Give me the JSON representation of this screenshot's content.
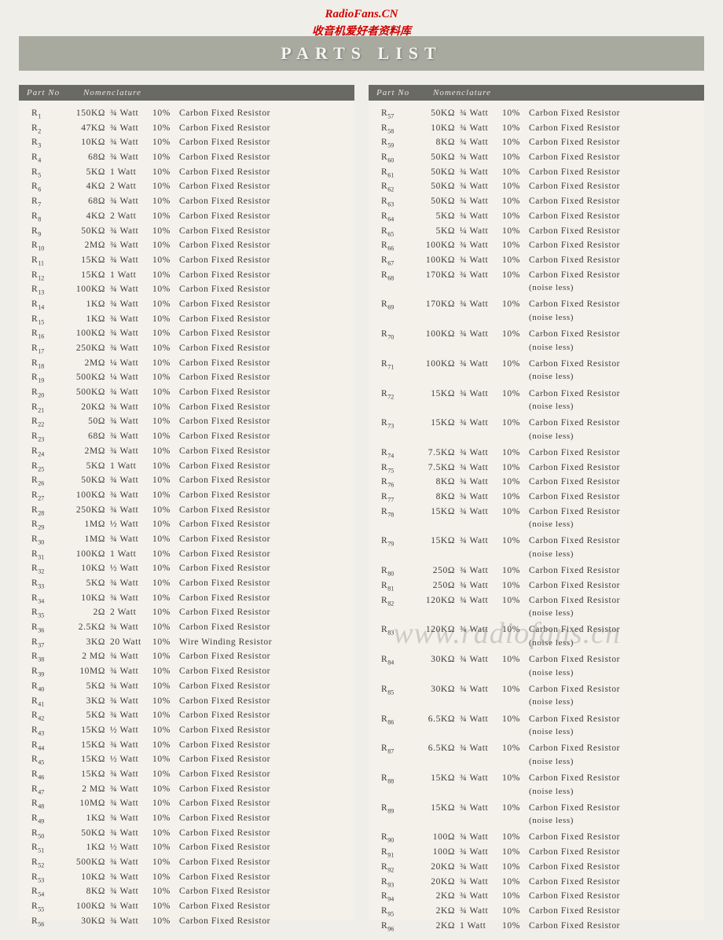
{
  "watermark": {
    "site": "RadioFans.CN",
    "cn": "收音机爱好者资料库",
    "diag": "www.radiofans.cn"
  },
  "title": "PARTS  LIST",
  "headers": {
    "part": "Part No",
    "nom": "Nomenclature"
  },
  "noise_text": "(noise less)",
  "left_rows": [
    {
      "n": "1",
      "v": "150KΩ",
      "w": "¾ Watt",
      "p": "10%",
      "d": "Carbon Fixed Resistor"
    },
    {
      "n": "2",
      "v": "47KΩ",
      "w": "¾ Watt",
      "p": "10%",
      "d": "Carbon Fixed Resistor"
    },
    {
      "n": "3",
      "v": "10KΩ",
      "w": "¾ Watt",
      "p": "10%",
      "d": "Carbon Fixed Resistor"
    },
    {
      "n": "4",
      "v": "68Ω",
      "w": "¾ Watt",
      "p": "10%",
      "d": "Carbon Fixed Resistor"
    },
    {
      "n": "5",
      "v": "5KΩ",
      "w": "1 Watt",
      "p": "10%",
      "d": "Carbon Fixed Resistor"
    },
    {
      "n": "6",
      "v": "4KΩ",
      "w": "2 Watt",
      "p": "10%",
      "d": "Carbon Fixed Resistor"
    },
    {
      "n": "7",
      "v": "68Ω",
      "w": "¾ Watt",
      "p": "10%",
      "d": "Carbon Fixed Resistor"
    },
    {
      "n": "8",
      "v": "4KΩ",
      "w": "2 Watt",
      "p": "10%",
      "d": "Carbon Fixed Resistor"
    },
    {
      "n": "9",
      "v": "50KΩ",
      "w": "¾ Watt",
      "p": "10%",
      "d": "Carbon Fixed Resistor"
    },
    {
      "n": "10",
      "v": "2MΩ",
      "w": "¾ Watt",
      "p": "10%",
      "d": "Carbon Fixed Resistor"
    },
    {
      "n": "11",
      "v": "15KΩ",
      "w": "¾ Watt",
      "p": "10%",
      "d": "Carbon Fixed Resistor"
    },
    {
      "n": "12",
      "v": "15KΩ",
      "w": "1 Watt",
      "p": "10%",
      "d": "Carbon Fixed Resistor"
    },
    {
      "n": "13",
      "v": "100KΩ",
      "w": "¾ Watt",
      "p": "10%",
      "d": "Carbon Fixed Resistor"
    },
    {
      "n": "14",
      "v": "1KΩ",
      "w": "¾ Watt",
      "p": "10%",
      "d": "Carbon Fixed Resistor"
    },
    {
      "n": "15",
      "v": "1KΩ",
      "w": "¾ Watt",
      "p": "10%",
      "d": "Carbon Fixed Resistor"
    },
    {
      "n": "16",
      "v": "100KΩ",
      "w": "¾ Watt",
      "p": "10%",
      "d": "Carbon Fixed Resistor"
    },
    {
      "n": "17",
      "v": "250KΩ",
      "w": "¾ Watt",
      "p": "10%",
      "d": "Carbon Fixed Resistor"
    },
    {
      "n": "18",
      "v": "2MΩ",
      "w": "¼ Watt",
      "p": "10%",
      "d": "Carbon Fixed Resistor"
    },
    {
      "n": "19",
      "v": "500KΩ",
      "w": "¼ Watt",
      "p": "10%",
      "d": "Carbon Fixed Resistor"
    },
    {
      "n": "20",
      "v": "500KΩ",
      "w": "¾ Watt",
      "p": "10%",
      "d": "Carbon Fixed Resistor"
    },
    {
      "n": "21",
      "v": "20KΩ",
      "w": "¾ Watt",
      "p": "10%",
      "d": "Carbon Fixed Resistor"
    },
    {
      "n": "22",
      "v": "50Ω",
      "w": "¾ Watt",
      "p": "10%",
      "d": "Carbon Fixed Resistor"
    },
    {
      "n": "23",
      "v": "68Ω",
      "w": "¾ Watt",
      "p": "10%",
      "d": "Carbon Fixed Resistor"
    },
    {
      "n": "24",
      "v": "2MΩ",
      "w": "¾ Watt",
      "p": "10%",
      "d": "Carbon Fixed Resistor"
    },
    {
      "n": "25",
      "v": "5KΩ",
      "w": "1 Watt",
      "p": "10%",
      "d": "Carbon Fixed Resistor"
    },
    {
      "n": "26",
      "v": "50KΩ",
      "w": "¾ Watt",
      "p": "10%",
      "d": "Carbon Fixed Resistor"
    },
    {
      "n": "27",
      "v": "100KΩ",
      "w": "¾ Watt",
      "p": "10%",
      "d": "Carbon Fixed Resistor"
    },
    {
      "n": "28",
      "v": "250KΩ",
      "w": "¾ Watt",
      "p": "10%",
      "d": "Carbon Fixed Resistor"
    },
    {
      "n": "29",
      "v": "1MΩ",
      "w": "½ Watt",
      "p": "10%",
      "d": "Carbon Fixed Resistor"
    },
    {
      "n": "30",
      "v": "1MΩ",
      "w": "¾ Watt",
      "p": "10%",
      "d": "Carbon Fixed Resistor"
    },
    {
      "n": "31",
      "v": "100KΩ",
      "w": "1 Watt",
      "p": "10%",
      "d": "Carbon Fixed Resistor"
    },
    {
      "n": "32",
      "v": "10KΩ",
      "w": "½ Watt",
      "p": "10%",
      "d": "Carbon Fixed Resistor"
    },
    {
      "n": "33",
      "v": "5KΩ",
      "w": "¾ Watt",
      "p": "10%",
      "d": "Carbon Fixed Resistor"
    },
    {
      "n": "34",
      "v": "10KΩ",
      "w": "¾ Watt",
      "p": "10%",
      "d": "Carbon Fixed Resistor"
    },
    {
      "n": "35",
      "v": "2Ω",
      "w": "2 Watt",
      "p": "10%",
      "d": "Carbon Fixed Resistor"
    },
    {
      "n": "36",
      "v": "2.5KΩ",
      "w": "¾ Watt",
      "p": "10%",
      "d": "Carbon Fixed Resistor"
    },
    {
      "n": "37",
      "v": "3KΩ",
      "w": "20 Watt",
      "p": "10%",
      "d": "Wire Winding Resistor"
    },
    {
      "n": "38",
      "v": "2 MΩ",
      "w": "¾ Watt",
      "p": "10%",
      "d": "Carbon Fixed Resistor"
    },
    {
      "n": "39",
      "v": "10MΩ",
      "w": "¾ Watt",
      "p": "10%",
      "d": "Carbon Fixed Resistor"
    },
    {
      "n": "40",
      "v": "5KΩ",
      "w": "¾ Watt",
      "p": "10%",
      "d": "Carbon Fixed Resistor"
    },
    {
      "n": "41",
      "v": "3KΩ",
      "w": "¾ Watt",
      "p": "10%",
      "d": "Carbon Fixed Resistor"
    },
    {
      "n": "42",
      "v": "5KΩ",
      "w": "¾ Watt",
      "p": "10%",
      "d": "Carbon Fixed Resistor"
    },
    {
      "n": "43",
      "v": "15KΩ",
      "w": "½ Watt",
      "p": "10%",
      "d": "Carbon Fixed Resistor"
    },
    {
      "n": "44",
      "v": "15KΩ",
      "w": "¾ Watt",
      "p": "10%",
      "d": "Carbon Fixed Resistor"
    },
    {
      "n": "45",
      "v": "15KΩ",
      "w": "½ Watt",
      "p": "10%",
      "d": "Carbon Fixed Resistor"
    },
    {
      "n": "46",
      "v": "15KΩ",
      "w": "¾ Watt",
      "p": "10%",
      "d": "Carbon Fixed Resistor"
    },
    {
      "n": "47",
      "v": "2 MΩ",
      "w": "¾ Watt",
      "p": "10%",
      "d": "Carbon Fixed Resistor"
    },
    {
      "n": "48",
      "v": "10MΩ",
      "w": "¾ Watt",
      "p": "10%",
      "d": "Carbon Fixed Resistor"
    },
    {
      "n": "49",
      "v": "1KΩ",
      "w": "¾ Watt",
      "p": "10%",
      "d": "Carbon Fixed Resistor"
    },
    {
      "n": "50",
      "v": "50KΩ",
      "w": "¾ Watt",
      "p": "10%",
      "d": "Carbon Fixed Resistor"
    },
    {
      "n": "51",
      "v": "1KΩ",
      "w": "½ Watt",
      "p": "10%",
      "d": "Carbon Fixed Resistor"
    },
    {
      "n": "52",
      "v": "500KΩ",
      "w": "¾ Watt",
      "p": "10%",
      "d": "Carbon Fixed Resistor"
    },
    {
      "n": "53",
      "v": "10KΩ",
      "w": "¾ Watt",
      "p": "10%",
      "d": "Carbon Fixed Resistor"
    },
    {
      "n": "54",
      "v": "8KΩ",
      "w": "¾ Watt",
      "p": "10%",
      "d": "Carbon Fixed Resistor"
    },
    {
      "n": "55",
      "v": "100KΩ",
      "w": "¾ Watt",
      "p": "10%",
      "d": "Carbon Fixed Resistor"
    },
    {
      "n": "56",
      "v": "30KΩ",
      "w": "¾ Watt",
      "p": "10%",
      "d": "Carbon Fixed Resistor"
    }
  ],
  "right_rows": [
    {
      "n": "57",
      "v": "50KΩ",
      "w": "¾ Watt",
      "p": "10%",
      "d": "Carbon Fixed Resistor"
    },
    {
      "n": "58",
      "v": "10KΩ",
      "w": "¾ Watt",
      "p": "10%",
      "d": "Carbon Fixed Resistor"
    },
    {
      "n": "59",
      "v": "8KΩ",
      "w": "¾ Watt",
      "p": "10%",
      "d": "Carbon Fixed Resistor"
    },
    {
      "n": "60",
      "v": "50KΩ",
      "w": "¾ Watt",
      "p": "10%",
      "d": "Carbon Fixed Resistor"
    },
    {
      "n": "61",
      "v": "50KΩ",
      "w": "¾ Watt",
      "p": "10%",
      "d": "Carbon Fixed Resistor"
    },
    {
      "n": "62",
      "v": "50KΩ",
      "w": "¾ Watt",
      "p": "10%",
      "d": "Carbon Fixed Resistor"
    },
    {
      "n": "63",
      "v": "50KΩ",
      "w": "¾ Watt",
      "p": "10%",
      "d": "Carbon Fixed Resistor"
    },
    {
      "n": "64",
      "v": "5KΩ",
      "w": "¾ Watt",
      "p": "10%",
      "d": "Carbon Fixed Resistor"
    },
    {
      "n": "65",
      "v": "5KΩ",
      "w": "¼ Watt",
      "p": "10%",
      "d": "Carbon Fixed Resistor"
    },
    {
      "n": "66",
      "v": "100KΩ",
      "w": "¾ Watt",
      "p": "10%",
      "d": "Carbon Fixed Resistor"
    },
    {
      "n": "67",
      "v": "100KΩ",
      "w": "¾ Watt",
      "p": "10%",
      "d": "Carbon Fixed Resistor"
    },
    {
      "n": "68",
      "v": "170KΩ",
      "w": "¾ Watt",
      "p": "10%",
      "d": "Carbon Fixed Resistor",
      "noise": true
    },
    {
      "n": "69",
      "v": "170KΩ",
      "w": "¾ Watt",
      "p": "10%",
      "d": "Carbon Fixed Resistor",
      "noise": true
    },
    {
      "n": "70",
      "v": "100KΩ",
      "w": "¾ Watt",
      "p": "10%",
      "d": "Carbon Fixed Resistor",
      "noise": true
    },
    {
      "n": "71",
      "v": "100KΩ",
      "w": "¾ Watt",
      "p": "10%",
      "d": "Carbon Fixed Resistor",
      "noise": true
    },
    {
      "n": "72",
      "v": "15KΩ",
      "w": "¾ Watt",
      "p": "10%",
      "d": "Carbon Fixed Resistor",
      "noise": true
    },
    {
      "n": "73",
      "v": "15KΩ",
      "w": "¾ Watt",
      "p": "10%",
      "d": "Carbon Fixed Resistor",
      "noise": true
    },
    {
      "n": "74",
      "v": "7.5KΩ",
      "w": "¾ Watt",
      "p": "10%",
      "d": "Carbon Fixed Resistor"
    },
    {
      "n": "75",
      "v": "7.5KΩ",
      "w": "¾ Watt",
      "p": "10%",
      "d": "Carbon Fixed Resistor"
    },
    {
      "n": "76",
      "v": "8KΩ",
      "w": "¾ Watt",
      "p": "10%",
      "d": "Carbon Fixed Resistor"
    },
    {
      "n": "77",
      "v": "8KΩ",
      "w": "¾ Watt",
      "p": "10%",
      "d": "Carbon Fixed Resistor"
    },
    {
      "n": "78",
      "v": "15KΩ",
      "w": "¾ Watt",
      "p": "10%",
      "d": "Carbon Fixed Resistor",
      "noise": true
    },
    {
      "n": "79",
      "v": "15KΩ",
      "w": "¾ Watt",
      "p": "10%",
      "d": "Carbon Fixed Resistor",
      "noise": true
    },
    {
      "n": "80",
      "v": "250Ω",
      "w": "¾ Watt",
      "p": "10%",
      "d": "Carbon Fixed Resistor"
    },
    {
      "n": "81",
      "v": "250Ω",
      "w": "¾ Watt",
      "p": "10%",
      "d": "Carbon Fixed Resistor"
    },
    {
      "n": "82",
      "v": "120KΩ",
      "w": "¾ Watt",
      "p": "10%",
      "d": "Carbon Fixed Resistor",
      "noise": true
    },
    {
      "n": "83",
      "v": "120KΩ",
      "w": "¾ Watt",
      "p": "10%",
      "d": "Carbon Fixed Resistor",
      "noise": true
    },
    {
      "n": "84",
      "v": "30KΩ",
      "w": "¾ Watt",
      "p": "10%",
      "d": "Carbon Fixed Resistor",
      "noise": true
    },
    {
      "n": "85",
      "v": "30KΩ",
      "w": "¾ Watt",
      "p": "10%",
      "d": "Carbon Fixed Resistor",
      "noise": true
    },
    {
      "n": "86",
      "v": "6.5KΩ",
      "w": "¾ Watt",
      "p": "10%",
      "d": "Carbon Fixed Resistor",
      "noise": true
    },
    {
      "n": "87",
      "v": "6.5KΩ",
      "w": "¾ Watt",
      "p": "10%",
      "d": "Carbon Fixed Resistor",
      "noise": true
    },
    {
      "n": "88",
      "v": "15KΩ",
      "w": "¾ Watt",
      "p": "10%",
      "d": "Carbon Fixed Resistor",
      "noise": true
    },
    {
      "n": "89",
      "v": "15KΩ",
      "w": "¾ Watt",
      "p": "10%",
      "d": "Carbon Fixed Resistor",
      "noise": true
    },
    {
      "n": "90",
      "v": "100Ω",
      "w": "¾ Watt",
      "p": "10%",
      "d": "Carbon Fixed Resistor"
    },
    {
      "n": "91",
      "v": "100Ω",
      "w": "¾ Watt",
      "p": "10%",
      "d": "Carbon Fixed Resistor"
    },
    {
      "n": "92",
      "v": "20KΩ",
      "w": "¾ Watt",
      "p": "10%",
      "d": "Carbon Fixed Resistor"
    },
    {
      "n": "93",
      "v": "20KΩ",
      "w": "¾ Watt",
      "p": "10%",
      "d": "Carbon Fixed Resistor"
    },
    {
      "n": "94",
      "v": "2KΩ",
      "w": "¾ Watt",
      "p": "10%",
      "d": "Carbon Fixed Resistor"
    },
    {
      "n": "95",
      "v": "2KΩ",
      "w": "¾ Watt",
      "p": "10%",
      "d": "Carbon Fixed Resistor"
    },
    {
      "n": "96",
      "v": "2KΩ",
      "w": "1 Watt",
      "p": "10%",
      "d": "Carbon Fixed Resistor"
    }
  ]
}
